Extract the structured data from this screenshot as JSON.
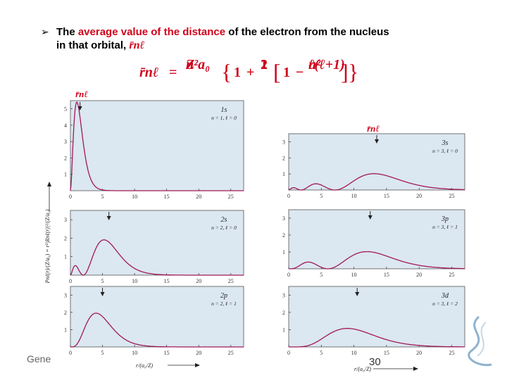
{
  "slide": {
    "line1_pre": "The ",
    "line1_highlight": "average value of the distance",
    "line1_post": " of the electron from the nucleus",
    "line2": "in that orbital,",
    "symbol": "r̄nℓ",
    "formula": {
      "lhs": "r̄nℓ",
      "eq": "=",
      "frac1_num": "n²a₀",
      "frac1_den": "Z",
      "brace_open": "{",
      "one": "1",
      "plus": "+",
      "frac2_num": "1",
      "frac2_den": "2",
      "bracket_open": "[",
      "one2": "1",
      "minus": "−",
      "frac3_num": "ℓ(ℓ+1)",
      "frac3_den": "n²",
      "bracket_close": "]",
      "brace_close": "}"
    },
    "footer_left": "Gene",
    "page_number": "30",
    "colors": {
      "highlight": "#d0021b",
      "plot_bg": "#dbe7f1",
      "curve": "#a0185a"
    }
  },
  "figure": {
    "ylabel_left": "Pnℓ(r)/(Z/a₀) = r²|Rnℓ(r)|²/(Z/a₀)",
    "xlabel": "r/(a₀/Z)",
    "rbar_label": "r̄nℓ",
    "arrow_icon": "down-arrow-icon"
  },
  "chart_data": [
    {
      "type": "line",
      "panel": "1s",
      "label": "1s",
      "qnums": "n = 1, ℓ = 0",
      "xlim": [
        0,
        27
      ],
      "ylim": [
        0,
        5.5
      ],
      "xticks": [
        0,
        5,
        10,
        15,
        20,
        25
      ],
      "yticks": [
        1,
        2,
        3,
        4,
        5
      ],
      "n": 1,
      "l": 0,
      "rbar": 1.5,
      "grid": false
    },
    {
      "type": "line",
      "panel": "2s",
      "label": "2s",
      "qnums": "n = 2, ℓ = 0",
      "xlim": [
        0,
        27
      ],
      "ylim": [
        0,
        3.5
      ],
      "xticks": [
        0,
        5,
        10,
        15,
        20,
        25
      ],
      "yticks": [
        1,
        2,
        3
      ],
      "n": 2,
      "l": 0,
      "rbar": 6,
      "grid": false
    },
    {
      "type": "line",
      "panel": "2p",
      "label": "2p",
      "qnums": "n = 2, ℓ = 1",
      "xlim": [
        0,
        27
      ],
      "ylim": [
        0,
        3.5
      ],
      "xticks": [
        0,
        5,
        10,
        15,
        20,
        25
      ],
      "yticks": [
        1,
        2,
        3
      ],
      "n": 2,
      "l": 1,
      "rbar": 5,
      "grid": false
    },
    {
      "type": "line",
      "panel": "3s",
      "label": "3s",
      "qnums": "n = 3, ℓ = 0",
      "xlim": [
        0,
        27
      ],
      "ylim": [
        0,
        3.5
      ],
      "xticks": [
        0,
        5,
        10,
        15,
        20,
        25
      ],
      "yticks": [
        1,
        2,
        3
      ],
      "n": 3,
      "l": 0,
      "rbar": 13.5,
      "grid": false
    },
    {
      "type": "line",
      "panel": "3p",
      "label": "3p",
      "qnums": "n = 3, ℓ = 1",
      "xlim": [
        0,
        27
      ],
      "ylim": [
        0,
        3.5
      ],
      "xticks": [
        0,
        5,
        10,
        15,
        20,
        25
      ],
      "yticks": [
        1,
        2,
        3
      ],
      "n": 3,
      "l": 1,
      "rbar": 12.5,
      "grid": false
    },
    {
      "type": "line",
      "panel": "3d",
      "label": "3d",
      "qnums": "n = 3, ℓ = 2",
      "xlim": [
        0,
        27
      ],
      "ylim": [
        0,
        3.5
      ],
      "xticks": [
        0,
        5,
        10,
        15,
        20,
        25
      ],
      "yticks": [
        1,
        2,
        3
      ],
      "n": 3,
      "l": 2,
      "rbar": 10.5,
      "grid": false
    }
  ]
}
